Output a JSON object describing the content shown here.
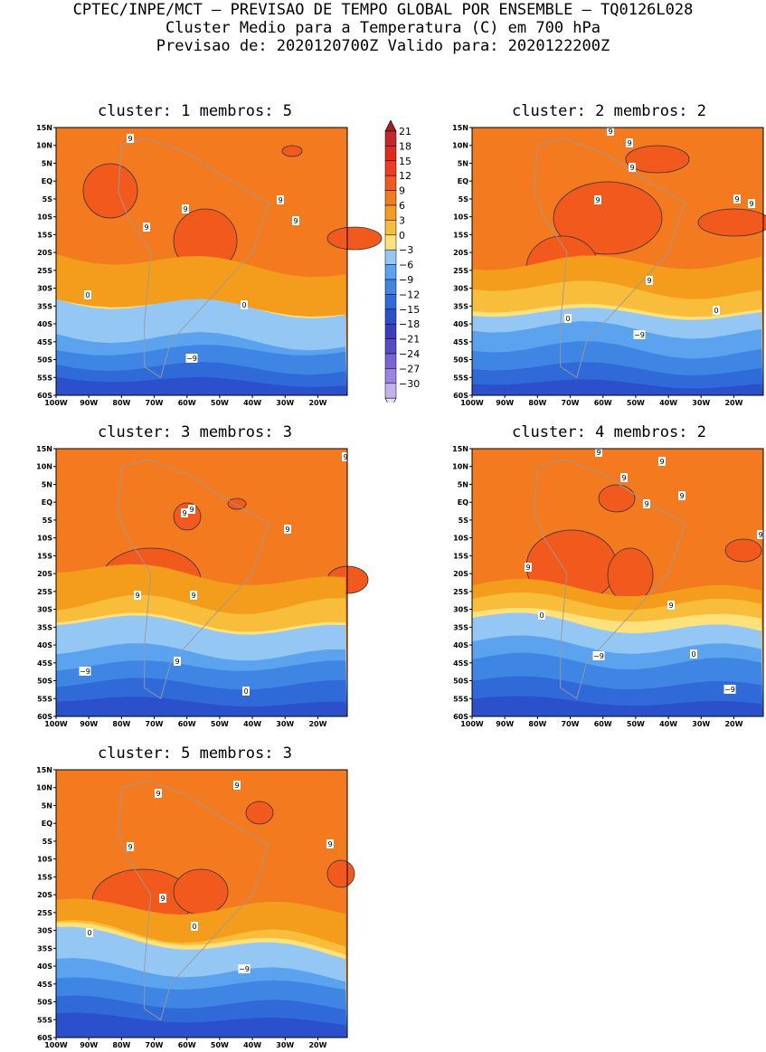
{
  "header": {
    "line1": "CPTEC/INPE/MCT – PREVISAO DE TEMPO GLOBAL POR ENSEMBLE – TQ0126L028",
    "line2": "Cluster Medio para a Temperatura (C) em 700 hPa",
    "line3": "Previsao de: 2020120700Z   Valido para: 2020122200Z"
  },
  "map_axes": {
    "lat_ticks": [
      "15N",
      "10N",
      "5N",
      "EQ",
      "5S",
      "10S",
      "15S",
      "20S",
      "25S",
      "30S",
      "35S",
      "40S",
      "45S",
      "50S",
      "55S",
      "60S"
    ],
    "lon_ticks": [
      "100W",
      "90W",
      "80W",
      "70W",
      "60W",
      "50W",
      "40W",
      "30W",
      "20W"
    ],
    "lat_range": [
      -60,
      15
    ],
    "lon_range": [
      -100,
      -11
    ]
  },
  "colorbar": {
    "labels": [
      "21",
      "18",
      "15",
      "12",
      "9",
      "6",
      "3",
      "0",
      "−3",
      "−6",
      "−9",
      "−12",
      "−15",
      "−18",
      "−21",
      "−24",
      "−27",
      "−30"
    ],
    "colors": [
      "#c0282d",
      "#dd2a1d",
      "#ee3b22",
      "#f25a1d",
      "#f47a20",
      "#f49d1c",
      "#f8bd3a",
      "#fde27c",
      "#95c7f5",
      "#5ba3ef",
      "#3f85e4",
      "#2f6ad8",
      "#2c4fcc",
      "#3a3fb9",
      "#5a4bc4",
      "#7a63d2",
      "#9b84df",
      "#c2b1ea"
    ],
    "top_arrow_color": "#a01e24",
    "bottom_arrow_color": "#e8e1f4"
  },
  "panels": [
    {
      "title": "cluster: 1   membros: 5",
      "labels": [
        "9",
        "9",
        "9",
        "9",
        "9",
        "0",
        "0",
        "−9"
      ]
    },
    {
      "title": "cluster: 2   membros: 2",
      "labels": [
        "9",
        "9",
        "9",
        "9",
        "9",
        "9",
        "9",
        "0",
        "0",
        "−9"
      ]
    },
    {
      "title": "cluster: 3   membros: 3",
      "labels": [
        "9",
        "9",
        "9",
        "9",
        "9",
        "9",
        "9",
        "0",
        "−9"
      ]
    },
    {
      "title": "cluster: 4   membros: 2",
      "labels": [
        "9",
        "9",
        "9",
        "9",
        "9",
        "9",
        "9",
        "9",
        "9",
        "0",
        "0",
        "−9",
        "−9"
      ]
    },
    {
      "title": "cluster: 5   membros: 3",
      "labels": [
        "9",
        "9",
        "9",
        "9",
        "9",
        "0",
        "0",
        "−9"
      ]
    }
  ]
}
